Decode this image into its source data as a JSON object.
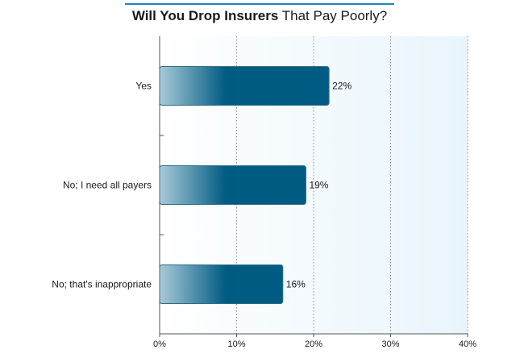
{
  "chart_data": {
    "type": "bar",
    "orientation": "horizontal",
    "title_bold": "Will You Drop Insurers",
    "title_regular": "That Pay Poorly?",
    "categories": [
      "Yes",
      "No; I need all payers",
      "No; that's inappropriate"
    ],
    "values": [
      22,
      19,
      16
    ],
    "value_labels": [
      "22%",
      "19%",
      "16%"
    ],
    "xlim": [
      0,
      40
    ],
    "x_ticks": [
      0,
      10,
      20,
      30,
      40
    ],
    "x_tick_labels": [
      "0%",
      "10%",
      "20%",
      "30%",
      "40%"
    ],
    "grid": "vertical dotted",
    "colors": {
      "bar_dark": "#005b82",
      "bar_light": "#a9cad9",
      "plot_bg_left": "#ffffff",
      "plot_bg_right": "#e8f5fc",
      "title_rule": "#1f86c2",
      "grid": "#8a8a8a"
    }
  }
}
